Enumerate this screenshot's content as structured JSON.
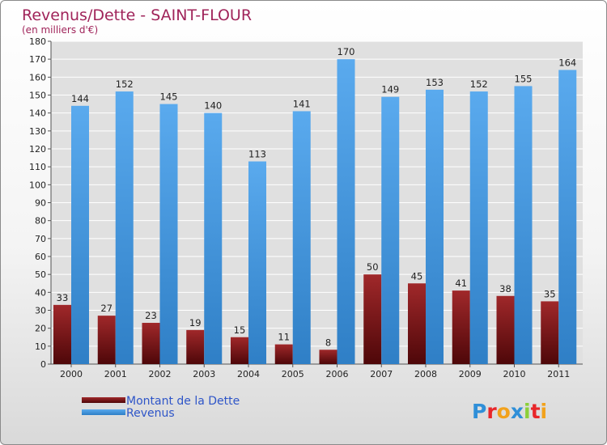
{
  "chart_data": {
    "type": "bar",
    "title": "Revenus/Dette - SAINT-FLOUR",
    "subtitle": "(en milliers d'€)",
    "categories": [
      "2000",
      "2001",
      "2002",
      "2003",
      "2004",
      "2005",
      "2006",
      "2007",
      "2008",
      "2009",
      "2010",
      "2011"
    ],
    "series": [
      {
        "name": "Montant de la Dette",
        "values": [
          33,
          27,
          23,
          19,
          15,
          11,
          8,
          50,
          45,
          41,
          38,
          35
        ],
        "color_top": "#a0282a",
        "color_bottom": "#4e0709"
      },
      {
        "name": "Revenus",
        "values": [
          144,
          152,
          145,
          140,
          113,
          141,
          170,
          149,
          153,
          152,
          155,
          164
        ],
        "color_top": "#5aaaee",
        "color_bottom": "#2f7fc6"
      }
    ],
    "ylim": [
      0,
      180
    ],
    "ytick_step": 10,
    "grid": true,
    "legend_position": "bottom-left"
  },
  "branding": {
    "logo_text": "Proxiti",
    "logo_letters": [
      "P",
      "r",
      "o",
      "x",
      "i",
      "t",
      "i"
    ],
    "logo_colors": [
      "#2f8fd8",
      "#e8262a",
      "#f2a21c",
      "#2f8fd8",
      "#8ccf3a",
      "#e8262a",
      "#f2a21c"
    ]
  },
  "colors": {
    "title": "#a0245a",
    "legend_text": "#2e55c8",
    "grid": "#ffffff",
    "plot_bg": "#e0e0e0"
  }
}
